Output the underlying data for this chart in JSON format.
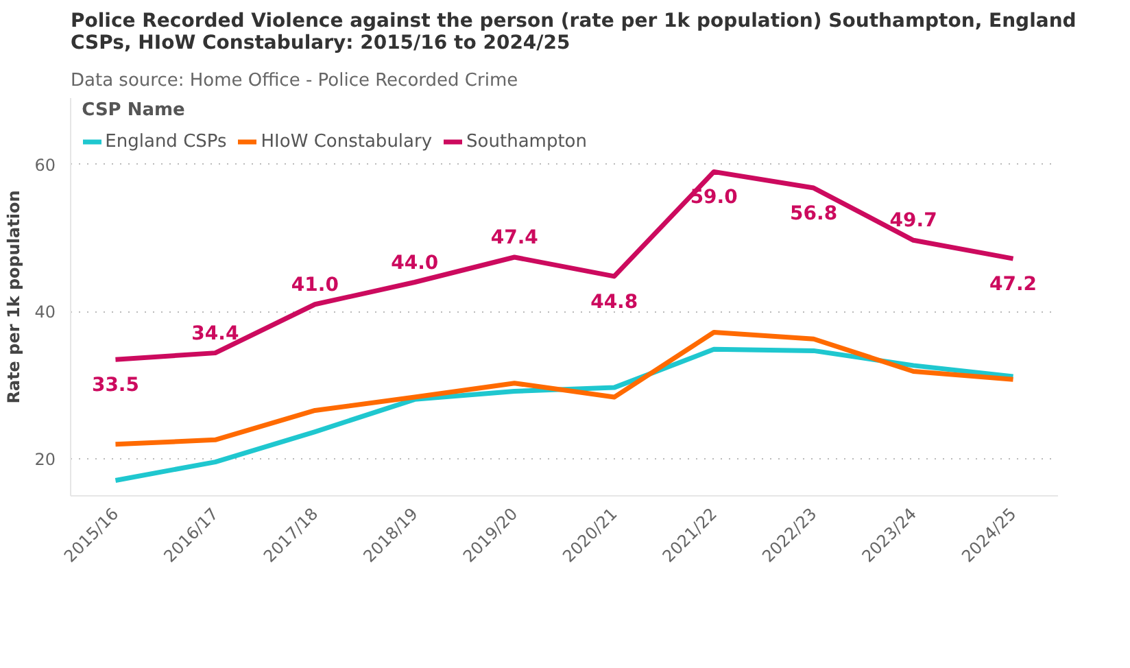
{
  "chart_data": {
    "type": "line",
    "title": "Police Recorded Violence against the person (rate per 1k population) Southampton, England CSPs, HIoW Constabulary: 2015/16 to 2024/25",
    "subtitle": "Data source: Home Office - Police Recorded Crime",
    "legend_title": "CSP Name",
    "ylabel": "Rate per 1k population",
    "categories": [
      "2015/16",
      "2016/17",
      "2017/18",
      "2018/19",
      "2019/20",
      "2020/21",
      "2021/22",
      "2022/23",
      "2023/24",
      "2024/25"
    ],
    "series": [
      {
        "name": "England CSPs",
        "color": "#1fc7cf",
        "values": [
          17.1,
          19.6,
          23.7,
          28.1,
          29.2,
          29.7,
          34.9,
          34.7,
          32.7,
          31.2
        ]
      },
      {
        "name": "HIoW Constabulary",
        "color": "#ff6a00",
        "values": [
          22.0,
          22.6,
          26.6,
          28.4,
          30.3,
          28.4,
          37.2,
          36.3,
          31.9,
          30.8
        ]
      },
      {
        "name": "Southampton",
        "color": "#cc0a5e",
        "values": [
          33.5,
          34.4,
          41.0,
          44.0,
          47.4,
          44.8,
          59.0,
          56.8,
          49.7,
          47.2
        ],
        "value_labels": [
          "33.5",
          "34.4",
          "41.0",
          "44.0",
          "47.4",
          "44.8",
          "59.0",
          "56.8",
          "49.7",
          "47.2"
        ]
      }
    ],
    "ylim": [
      15,
      69
    ],
    "yticks": [
      20,
      40,
      60
    ],
    "grid": "y",
    "legend": "top left"
  }
}
